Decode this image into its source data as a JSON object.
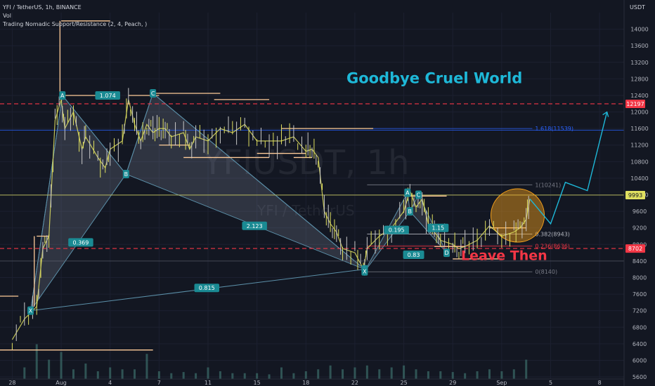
{
  "header": {
    "symbol_line": "YFI / TetherUS, 1h, BINANCE",
    "vol_label": "Vol",
    "indicator": "Trading Nomadic Support/Resistance (2, 4, Peach, )",
    "currency": "USDT"
  },
  "watermark": {
    "big": "YFIUSDT, 1h",
    "small": "YFI / TetherUS"
  },
  "annotations": {
    "goodbye": "Goodbye Cruel World",
    "leave": "Leave Then"
  },
  "colors": {
    "background": "#131722",
    "accent_cyan": "#1eb8d8",
    "red_dashed": "#f23645",
    "peach": "#ffcc99",
    "candle_up": "#e0e060",
    "fib_blue": "#2962ff",
    "orange_circle": "#f7a21b"
  },
  "chart_data": {
    "type": "candlestick",
    "y_axis": {
      "ticks": [
        5600,
        6000,
        6400,
        6800,
        7200,
        7600,
        8000,
        8400,
        8800,
        9200,
        9600,
        10000,
        10400,
        10800,
        11200,
        11600,
        12000,
        12400,
        12800,
        13200,
        13600,
        14000
      ],
      "range": [
        5550,
        14400
      ],
      "price_labels": [
        {
          "value": 12197,
          "text": "12197",
          "color": "#f23645"
        },
        {
          "value": 9993,
          "text": "9993",
          "color": "#e0e060"
        },
        {
          "value": 8702,
          "text": "8702",
          "color": "#f23645"
        }
      ]
    },
    "x_axis": {
      "tick_labels": [
        "28",
        "Aug",
        "4",
        "7",
        "11",
        "15",
        "18",
        "22",
        "25",
        "29",
        "Sep",
        "5",
        "8"
      ],
      "tick_positions": [
        0,
        4,
        8,
        12,
        16,
        20,
        24,
        28,
        32,
        36,
        40,
        44,
        48
      ],
      "range": [
        -1,
        50
      ]
    },
    "price_path": [
      [
        0,
        6500
      ],
      [
        1,
        7000
      ],
      [
        2,
        7300
      ],
      [
        2.5,
        8700
      ],
      [
        3,
        9000
      ],
      [
        3.5,
        11800
      ],
      [
        4,
        12300
      ],
      [
        4.3,
        11600
      ],
      [
        5,
        12000
      ],
      [
        5.7,
        11100
      ],
      [
        6,
        11400
      ],
      [
        7,
        10900
      ],
      [
        7.6,
        10650
      ],
      [
        8,
        11100
      ],
      [
        9,
        11300
      ],
      [
        9.5,
        12300
      ],
      [
        10,
        11700
      ],
      [
        10.5,
        11300
      ],
      [
        11,
        11700
      ],
      [
        11.5,
        11500
      ],
      [
        12,
        11600
      ],
      [
        12.5,
        11600
      ],
      [
        13,
        11400
      ],
      [
        14,
        11500
      ],
      [
        14.5,
        11100
      ],
      [
        15,
        11400
      ],
      [
        16,
        11300
      ],
      [
        17,
        11600
      ],
      [
        18,
        11500
      ],
      [
        19,
        11700
      ],
      [
        20,
        11300
      ],
      [
        21,
        11300
      ],
      [
        22,
        11300
      ],
      [
        23,
        11400
      ],
      [
        24,
        11050
      ],
      [
        24.5,
        11100
      ],
      [
        25,
        10900
      ],
      [
        25.5,
        9600
      ],
      [
        26,
        9300
      ],
      [
        26.5,
        9100
      ],
      [
        27,
        8700
      ],
      [
        28,
        8600
      ],
      [
        28.7,
        8200
      ],
      [
        29,
        8700
      ],
      [
        30,
        9000
      ],
      [
        31,
        9200
      ],
      [
        32,
        9600
      ],
      [
        32.5,
        10100
      ],
      [
        33,
        9700
      ],
      [
        33.5,
        9900
      ],
      [
        34,
        9300
      ],
      [
        34.5,
        9100
      ],
      [
        35,
        8900
      ],
      [
        36,
        8800
      ],
      [
        36.5,
        8700
      ],
      [
        37,
        8750
      ],
      [
        38,
        8900
      ],
      [
        39,
        9250
      ],
      [
        40,
        9000
      ],
      [
        41,
        9100
      ],
      [
        41.5,
        9200
      ],
      [
        42,
        9400
      ],
      [
        42.3,
        9900
      ]
    ],
    "pattern_points": [
      {
        "label": "X",
        "x": 1.5,
        "y": 7200
      },
      {
        "label": "A",
        "x": 4.1,
        "y": 12400
      },
      {
        "label": "B",
        "x": 9.3,
        "y": 10500
      },
      {
        "label": "C",
        "x": 11.5,
        "y": 12450
      },
      {
        "label": "D",
        "x": 28.8,
        "y": 8200
      }
    ],
    "pattern2_points": [
      {
        "label": "X",
        "x": 28.8,
        "y": 8150
      },
      {
        "label": "A",
        "x": 32.3,
        "y": 10050
      },
      {
        "label": "B",
        "x": 32.5,
        "y": 9600
      },
      {
        "label": "C",
        "x": 33.2,
        "y": 10000
      },
      {
        "label": "D",
        "x": 35.5,
        "y": 8600
      }
    ],
    "ratios": [
      {
        "text": "1.074",
        "x": 7.8,
        "y": 12400
      },
      {
        "text": "0.369",
        "x": 5.6,
        "y": 8850
      },
      {
        "text": "2.123",
        "x": 19.8,
        "y": 9250
      },
      {
        "text": "0.815",
        "x": 15.9,
        "y": 7750
      },
      {
        "text": "0.195",
        "x": 31.4,
        "y": 9150
      },
      {
        "text": "0.83",
        "x": 32.8,
        "y": 8550
      },
      {
        "text": "1.15",
        "x": 34.8,
        "y": 9200
      }
    ],
    "fib_levels": [
      {
        "text": "1.618(11539)",
        "value": 11600,
        "color": "#2962ff"
      },
      {
        "text": "1(10241)",
        "value": 10241,
        "color": "#787b86"
      },
      {
        "text": "0.382(8943)",
        "value": 9050,
        "color": "#b2b5be"
      },
      {
        "text": "0.236(8636)",
        "value": 8760,
        "color": "#f23645"
      },
      {
        "text": "0(8140)",
        "value": 8140,
        "color": "#787b86"
      }
    ],
    "forecast_path": [
      [
        42.3,
        9900
      ],
      [
        44,
        9300
      ],
      [
        45.2,
        10300
      ],
      [
        47,
        10100
      ],
      [
        48.6,
        12000
      ]
    ],
    "volume": [
      [
        1,
        300
      ],
      [
        2,
        900
      ],
      [
        3,
        500
      ],
      [
        4,
        700
      ],
      [
        5,
        250
      ],
      [
        6,
        400
      ],
      [
        7,
        200
      ],
      [
        8,
        300
      ],
      [
        9,
        250
      ],
      [
        10,
        250
      ],
      [
        11,
        650
      ],
      [
        12,
        200
      ],
      [
        13,
        150
      ],
      [
        14,
        180
      ],
      [
        15,
        150
      ],
      [
        16,
        300
      ],
      [
        17,
        200
      ],
      [
        18,
        150
      ],
      [
        19,
        150
      ],
      [
        20,
        150
      ],
      [
        21,
        120
      ],
      [
        22,
        300
      ],
      [
        23,
        150
      ],
      [
        24,
        200
      ],
      [
        25,
        250
      ],
      [
        26,
        350
      ],
      [
        27,
        250
      ],
      [
        28,
        300
      ],
      [
        29,
        350
      ],
      [
        30,
        250
      ],
      [
        31,
        300
      ],
      [
        32,
        350
      ],
      [
        33,
        250
      ],
      [
        34,
        200
      ],
      [
        35,
        200
      ],
      [
        36,
        180
      ],
      [
        37,
        150
      ],
      [
        38,
        200
      ],
      [
        39,
        250
      ],
      [
        40,
        200
      ],
      [
        41,
        250
      ],
      [
        42,
        500
      ]
    ]
  }
}
